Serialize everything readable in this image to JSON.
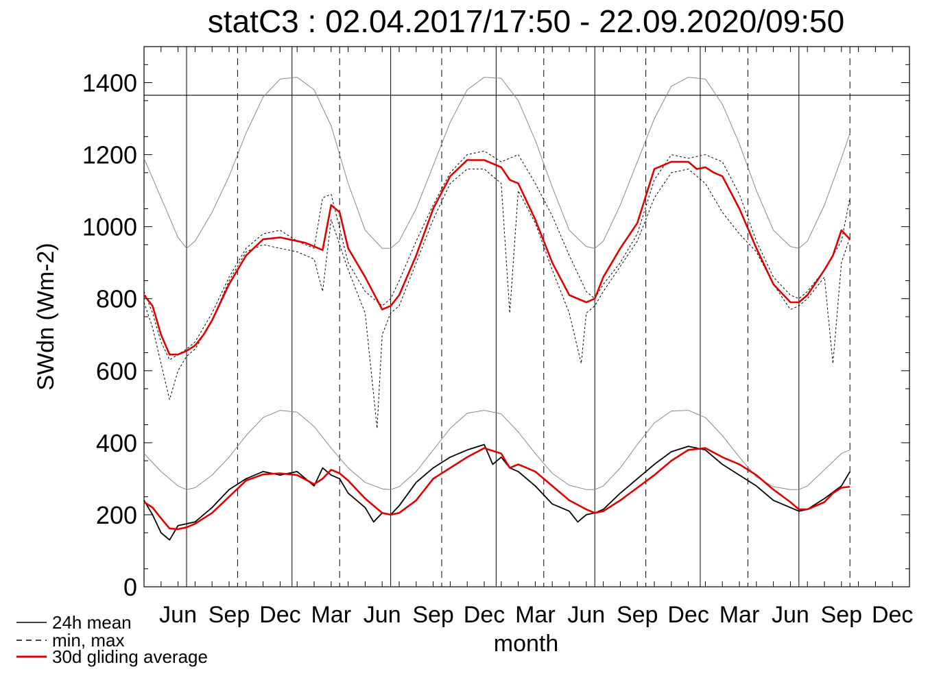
{
  "chart_data": {
    "type": "line",
    "title": "statC3 : 02.04.2017/17:50 - 22.09.2020/09:50",
    "xlabel": "month",
    "ylabel": "SWdn (Wm-2)",
    "ylim": [
      0,
      1500
    ],
    "yticks": [
      0,
      200,
      400,
      600,
      800,
      1000,
      1200,
      1400
    ],
    "x_unit": "month index (0 = April 2017)",
    "xlim": [
      0,
      45
    ],
    "xticks": [
      {
        "label": "Jun",
        "x": 2
      },
      {
        "label": "Sep",
        "x": 5
      },
      {
        "label": "Dec",
        "x": 8
      },
      {
        "label": "Mar",
        "x": 11
      },
      {
        "label": "Jun",
        "x": 14
      },
      {
        "label": "Sep",
        "x": 17
      },
      {
        "label": "Dec",
        "x": 20
      },
      {
        "label": "Mar",
        "x": 23
      },
      {
        "label": "Jun",
        "x": 26
      },
      {
        "label": "Sep",
        "x": 29
      },
      {
        "label": "Dec",
        "x": 32
      },
      {
        "label": "Mar",
        "x": 35
      },
      {
        "label": "Jun",
        "x": 38
      },
      {
        "label": "Sep",
        "x": 41
      },
      {
        "label": "Dec",
        "x": 44
      }
    ],
    "year_lines": [
      2.5,
      14.5,
      26.5,
      38.5
    ],
    "dec_lines": [
      8.7,
      20.7,
      32.7
    ],
    "season_dashed": [
      5.5,
      11.5,
      17.5,
      23.5,
      29.5,
      35.5,
      41.5
    ],
    "hline": 1365,
    "legend": {
      "position": "bottom-left",
      "entries": [
        {
          "label": "24h mean",
          "style": "solid",
          "color": "#000000"
        },
        {
          "label": "min, max",
          "style": "dashed",
          "color": "#000000"
        },
        {
          "label": "30d gliding average",
          "style": "solid",
          "color": "#e00000"
        }
      ]
    },
    "series": [
      {
        "key": "toa_max",
        "color": "#888888",
        "x": [
          0,
          1,
          2,
          2.5,
          3,
          4,
          5,
          6,
          7,
          8,
          9,
          10,
          11,
          12,
          13,
          14,
          14.5,
          15,
          16,
          17,
          18,
          19,
          20,
          21,
          22,
          23,
          24,
          25,
          26,
          26.5,
          27,
          28,
          29,
          30,
          31,
          32,
          33,
          34,
          35,
          36,
          37,
          38,
          38.5,
          39,
          40,
          41,
          41.5
        ],
        "y": [
          1190,
          1080,
          970,
          940,
          960,
          1040,
          1140,
          1260,
          1360,
          1410,
          1415,
          1380,
          1280,
          1120,
          990,
          940,
          940,
          960,
          1050,
          1170,
          1290,
          1380,
          1415,
          1412,
          1350,
          1240,
          1110,
          990,
          945,
          940,
          960,
          1060,
          1180,
          1300,
          1390,
          1415,
          1410,
          1340,
          1230,
          1100,
          990,
          945,
          940,
          960,
          1060,
          1190,
          1260
        ]
      },
      {
        "key": "max_daily",
        "color": "#000000",
        "x": [
          0,
          0.5,
          1,
          1.5,
          2,
          2.5,
          3,
          4,
          5,
          6,
          7,
          8,
          9,
          10,
          10.5,
          11,
          12,
          13,
          14,
          14.5,
          15,
          16,
          17,
          18,
          19,
          20,
          21,
          22,
          23,
          24,
          25,
          26,
          26.5,
          27,
          28,
          29,
          30,
          31,
          32,
          33,
          34,
          35,
          36,
          37,
          38,
          38.5,
          39,
          40,
          41,
          41.5
        ],
        "y": [
          820,
          760,
          680,
          630,
          645,
          660,
          680,
          760,
          860,
          940,
          980,
          990,
          960,
          940,
          1080,
          1090,
          900,
          820,
          780,
          800,
          850,
          960,
          1060,
          1150,
          1200,
          1210,
          1180,
          1200,
          1120,
          1030,
          920,
          820,
          800,
          840,
          900,
          980,
          1130,
          1200,
          1190,
          1200,
          1180,
          1090,
          960,
          860,
          810,
          800,
          820,
          880,
          960,
          1080
        ]
      },
      {
        "key": "min_daily",
        "color": "#000000",
        "x": [
          0,
          0.5,
          1,
          1.5,
          2,
          2.5,
          3,
          4,
          5,
          6,
          7,
          8,
          9,
          10,
          10.5,
          11,
          12,
          13,
          13.7,
          14,
          14.5,
          15,
          16,
          17,
          18,
          19,
          20,
          21,
          21.5,
          22,
          23,
          24,
          25,
          25.7,
          26,
          26.5,
          27,
          28,
          29,
          30,
          31,
          32,
          33,
          34,
          35,
          36,
          37,
          38,
          38.5,
          39,
          40,
          40.5,
          41,
          41.5
        ],
        "y": [
          790,
          720,
          620,
          520,
          600,
          640,
          660,
          740,
          850,
          930,
          950,
          940,
          930,
          910,
          820,
          1020,
          880,
          760,
          440,
          700,
          760,
          780,
          900,
          1020,
          1120,
          1160,
          1160,
          1120,
          760,
          1100,
          1010,
          880,
          760,
          620,
          760,
          780,
          820,
          890,
          960,
          1080,
          1150,
          1160,
          1120,
          1040,
          980,
          930,
          840,
          770,
          780,
          800,
          860,
          620,
          900,
          970
        ]
      },
      {
        "key": "gliding_30d_max",
        "color": "#e00000",
        "x": [
          0,
          0.5,
          1,
          1.5,
          2,
          2.5,
          3,
          3.5,
          4,
          5,
          6,
          7,
          8,
          9,
          9.5,
          10,
          10.5,
          11,
          11.5,
          12,
          13,
          14,
          14.5,
          15,
          16,
          17,
          18,
          19,
          20,
          21,
          21.5,
          22,
          23,
          24,
          25,
          26,
          26.5,
          27,
          28,
          29,
          30,
          31,
          32,
          32.5,
          33,
          33.5,
          34,
          35,
          36,
          37,
          38,
          38.5,
          39,
          40,
          40.5,
          41,
          41.5
        ],
        "y": [
          810,
          780,
          700,
          645,
          645,
          655,
          670,
          700,
          740,
          840,
          920,
          965,
          970,
          960,
          955,
          945,
          935,
          1060,
          1040,
          940,
          860,
          770,
          780,
          810,
          920,
          1050,
          1140,
          1185,
          1185,
          1165,
          1130,
          1120,
          1020,
          900,
          810,
          790,
          800,
          860,
          940,
          1010,
          1160,
          1180,
          1180,
          1160,
          1165,
          1150,
          1140,
          1050,
          940,
          840,
          790,
          790,
          810,
          880,
          920,
          990,
          965
        ]
      },
      {
        "key": "toa_mean",
        "color": "#888888",
        "x": [
          0,
          1,
          2,
          2.5,
          3,
          4,
          5,
          6,
          7,
          8,
          9,
          10,
          11,
          12,
          13,
          14,
          14.5,
          15,
          16,
          17,
          18,
          19,
          20,
          21,
          22,
          23,
          24,
          25,
          26,
          26.5,
          27,
          28,
          29,
          30,
          31,
          32,
          33,
          34,
          35,
          36,
          37,
          38,
          38.5,
          39,
          40,
          41,
          41.5
        ],
        "y": [
          370,
          320,
          280,
          270,
          275,
          310,
          360,
          420,
          470,
          490,
          485,
          445,
          385,
          330,
          290,
          272,
          270,
          278,
          320,
          380,
          440,
          482,
          490,
          480,
          430,
          370,
          315,
          282,
          270,
          270,
          280,
          330,
          395,
          455,
          488,
          490,
          470,
          420,
          360,
          305,
          278,
          270,
          270,
          280,
          325,
          370,
          380
        ]
      },
      {
        "key": "mean_24h",
        "color": "#000000",
        "x": [
          0,
          0.5,
          1,
          1.5,
          2,
          2.5,
          3,
          3.5,
          4,
          5,
          6,
          7,
          8,
          9,
          10,
          10.5,
          11,
          11.5,
          12,
          13,
          13.5,
          14,
          14.5,
          15,
          16,
          17,
          18,
          19,
          20,
          20.5,
          21,
          21.5,
          22,
          23,
          24,
          25,
          25.5,
          26,
          26.5,
          27,
          28,
          29,
          30,
          31,
          32,
          33,
          34,
          35,
          36,
          37,
          38,
          38.5,
          39,
          40,
          41,
          41.5
        ],
        "y": [
          240,
          200,
          150,
          130,
          170,
          175,
          180,
          200,
          220,
          270,
          300,
          320,
          310,
          320,
          280,
          330,
          310,
          300,
          260,
          220,
          180,
          205,
          200,
          225,
          290,
          330,
          360,
          380,
          395,
          340,
          360,
          330,
          320,
          280,
          230,
          210,
          180,
          200,
          205,
          215,
          260,
          300,
          340,
          375,
          390,
          380,
          340,
          310,
          280,
          240,
          220,
          210,
          215,
          245,
          280,
          320
        ]
      },
      {
        "key": "gliding_30d_mean",
        "color": "#e00000",
        "x": [
          0,
          0.5,
          1,
          1.5,
          2,
          2.5,
          3,
          3.5,
          4,
          5,
          6,
          7,
          8,
          9,
          10,
          10.5,
          11,
          11.5,
          12,
          13,
          14,
          14.5,
          15,
          16,
          17,
          18,
          19,
          20,
          21,
          21.5,
          22,
          23,
          24,
          25,
          26,
          26.5,
          27,
          28,
          29,
          30,
          31,
          32,
          33,
          34,
          35,
          36,
          37,
          38,
          38.5,
          39,
          40,
          40.5,
          41,
          41.5
        ],
        "y": [
          235,
          220,
          190,
          162,
          160,
          165,
          175,
          190,
          205,
          250,
          295,
          312,
          315,
          310,
          285,
          300,
          325,
          315,
          295,
          245,
          205,
          200,
          205,
          240,
          300,
          330,
          360,
          385,
          370,
          330,
          340,
          320,
          280,
          240,
          215,
          205,
          210,
          240,
          275,
          310,
          350,
          380,
          385,
          360,
          340,
          310,
          270,
          235,
          215,
          215,
          235,
          260,
          275,
          278
        ]
      }
    ]
  }
}
